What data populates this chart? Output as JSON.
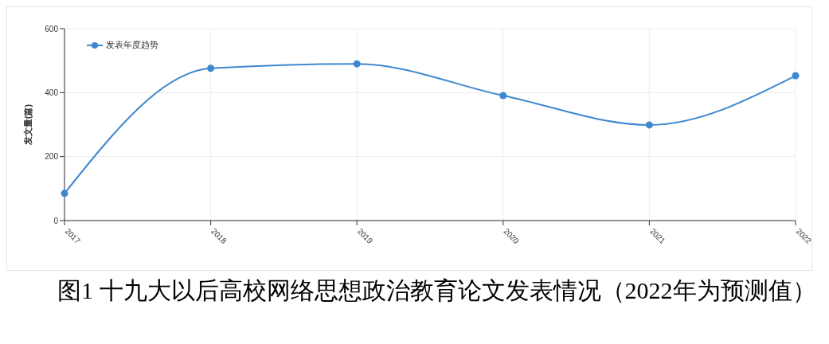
{
  "chart_data": {
    "type": "line",
    "title": "图1 十九大以后高校网络思想政治教育论文发表情况（2022年为预测值）",
    "ylabel": "发文量(篇)",
    "categories": [
      "2017",
      "2018",
      "2019",
      "2020",
      "2021",
      "2022"
    ],
    "series": [
      {
        "name": "发表年度趋势",
        "color": "#3e88d0",
        "values": [
          85,
          476,
          490,
          391,
          299,
          453
        ]
      }
    ],
    "ylim": [
      0,
      600
    ],
    "yticks": [
      0,
      200,
      400,
      600
    ],
    "grid": true,
    "legend": "top left",
    "marker": "circle",
    "line_style": "solid"
  }
}
